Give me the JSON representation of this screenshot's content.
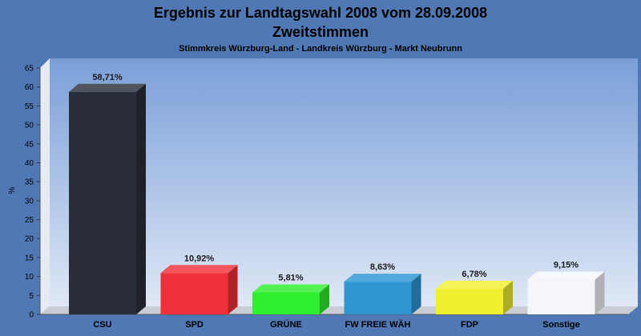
{
  "chart_data": {
    "type": "bar",
    "title": "Ergebnis zur Landtagswahl 2008 vom 28.09.2008",
    "title2": "Zweitstimmen",
    "subtitle": "Stimmkreis Würzburg-Land - Landkreis Würzburg - Markt Neubrunn",
    "ylabel": "%",
    "ylim": [
      0,
      65
    ],
    "yticks": [
      0,
      5,
      10,
      15,
      20,
      25,
      30,
      35,
      40,
      45,
      50,
      55,
      60,
      65
    ],
    "grid": false,
    "legend": "none",
    "categories": [
      "CSU",
      "SPD",
      "GRÜNE",
      "FW FREIE WÄH",
      "FDP",
      "Sonstige"
    ],
    "values": [
      58.71,
      10.92,
      5.81,
      8.63,
      6.78,
      9.15
    ],
    "value_labels": [
      "58,71%",
      "10,92%",
      "5,81%",
      "8,63%",
      "6,78%",
      "9,15%"
    ],
    "colors": [
      "#2a2e3a",
      "#f03038",
      "#30ee30",
      "#2f96d4",
      "#f0f030",
      "#f4f6fa"
    ]
  }
}
